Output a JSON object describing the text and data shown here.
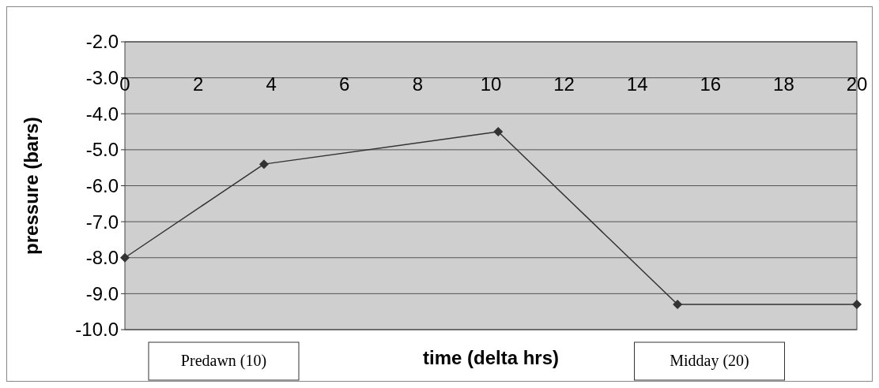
{
  "chart_data": {
    "type": "line",
    "xlabel": "time (delta hrs)",
    "ylabel": "pressure (bars)",
    "x": [
      0,
      3.8,
      10.2,
      15.1,
      20
    ],
    "series": [
      {
        "color": "#333333",
        "values": [
          -8.0,
          -5.4,
          -4.5,
          -9.3,
          -9.3
        ]
      }
    ],
    "xlim": [
      0,
      20
    ],
    "xticks": [
      0,
      2,
      4,
      6,
      8,
      10,
      12,
      14,
      16,
      18,
      20
    ],
    "ylim": [
      -10,
      -2
    ],
    "yticks": [
      {
        "value": -2,
        "label": "-2.0"
      },
      {
        "value": -3,
        "label": "-3.0"
      },
      {
        "value": -4,
        "label": "-4.0"
      },
      {
        "value": -5,
        "label": "-5.0"
      },
      {
        "value": -6,
        "label": "-6.0"
      },
      {
        "value": -7,
        "label": "-7.0"
      },
      {
        "value": -8,
        "label": "-8.0"
      },
      {
        "value": -9,
        "label": "-9.0"
      },
      {
        "value": -10,
        "label": "-10.0"
      }
    ],
    "grid": "y",
    "marker": "diamond",
    "line_style": "solid",
    "annotations": [
      "Predawn (10)",
      "Midday (20)"
    ]
  }
}
